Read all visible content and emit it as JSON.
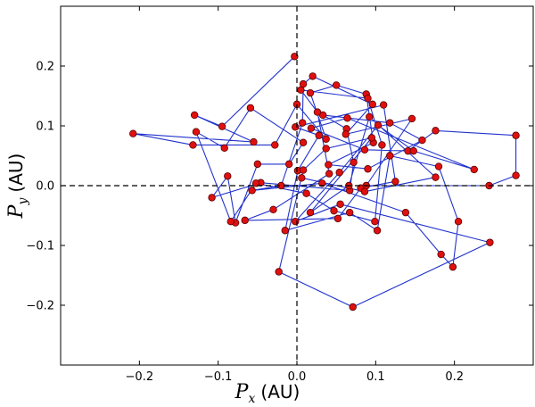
{
  "chart_data": {
    "type": "line",
    "title": "",
    "xlabel": {
      "symbol": "P",
      "subscript": "x",
      "unit": "(AU)"
    },
    "ylabel": {
      "symbol": "P",
      "subscript": "y",
      "unit": "(AU)"
    },
    "xlim": [
      -0.3,
      0.3
    ],
    "ylim": [
      -0.3,
      0.3
    ],
    "xticks": [
      -0.2,
      -0.1,
      0.0,
      0.1,
      0.2
    ],
    "yticks": [
      -0.2,
      -0.1,
      0.0,
      0.1,
      0.2
    ],
    "xtick_labels": [
      "−0.2",
      "−0.1",
      "0.0",
      "0.1",
      "0.2"
    ],
    "ytick_labels": [
      "−0.2",
      "−0.1",
      "0.0",
      "0.1",
      "0.2"
    ],
    "reference_lines": [
      {
        "orientation": "horizontal",
        "value": 0.0,
        "style": "dashed"
      },
      {
        "orientation": "vertical",
        "value": 0.0,
        "style": "dashed"
      }
    ],
    "grid": false,
    "line_color": "#2233cc",
    "marker_color": "#e01010",
    "marker_edge_color": "#550000",
    "points": [
      [
        -0.003,
        0.216
      ],
      [
        -0.095,
        0.099
      ],
      [
        -0.13,
        0.118
      ],
      [
        -0.055,
        0.073
      ],
      [
        -0.208,
        0.087
      ],
      [
        -0.132,
        0.068
      ],
      [
        -0.028,
        0.068
      ],
      [
        0.0,
        0.136
      ],
      [
        0.037,
        0.078
      ],
      [
        0.017,
        0.155
      ],
      [
        0.05,
        0.168
      ],
      [
        0.088,
        0.153
      ],
      [
        0.097,
        0.072
      ],
      [
        0.04,
        0.035
      ],
      [
        0.09,
        0.028
      ],
      [
        0.159,
        0.076
      ],
      [
        0.118,
        0.105
      ],
      [
        0.033,
        0.118
      ],
      [
        0.063,
        0.095
      ],
      [
        0.072,
        0.039
      ],
      [
        0.067,
        -0.008
      ],
      [
        -0.046,
        0.005
      ],
      [
        -0.108,
        -0.02
      ],
      [
        -0.088,
        0.016
      ],
      [
        -0.078,
        -0.062
      ],
      [
        -0.05,
        0.036
      ],
      [
        -0.01,
        0.036
      ],
      [
        0.008,
        0.072
      ],
      [
        -0.059,
        0.13
      ],
      [
        -0.092,
        0.063
      ],
      [
        -0.128,
        0.09
      ],
      [
        -0.084,
        -0.06
      ],
      [
        -0.052,
        0.004
      ],
      [
        0.012,
        -0.013
      ],
      [
        0.047,
        -0.042
      ],
      [
        0.099,
        -0.06
      ],
      [
        0.108,
        0.068
      ],
      [
        0.09,
        0.146
      ],
      [
        0.005,
        0.16
      ],
      [
        0.026,
        0.123
      ],
      [
        0.041,
        0.02
      ],
      [
        -0.03,
        -0.04
      ],
      [
        -0.066,
        -0.058
      ],
      [
        0.052,
        -0.055
      ],
      [
        0.081,
        -0.004
      ],
      [
        0.125,
        0.007
      ],
      [
        0.11,
        0.135
      ],
      [
        -0.002,
        0.098
      ],
      [
        0.028,
        0.084
      ],
      [
        0.001,
        0.025
      ],
      [
        -0.015,
        -0.075
      ],
      [
        0.067,
        -0.045
      ],
      [
        0.102,
        -0.075
      ],
      [
        0.118,
        0.05
      ],
      [
        0.18,
        0.032
      ],
      [
        0.205,
        -0.06
      ],
      [
        0.198,
        -0.136
      ],
      [
        0.183,
        -0.115
      ],
      [
        0.138,
        -0.045
      ],
      [
        0.032,
        0.004
      ],
      [
        -0.057,
        -0.008
      ],
      [
        -0.02,
        0.0
      ],
      [
        0.007,
        0.105
      ],
      [
        0.008,
        0.17
      ],
      [
        0.02,
        0.183
      ],
      [
        0.096,
        0.136
      ],
      [
        0.062,
        0.086
      ],
      [
        0.146,
        0.112
      ],
      [
        0.088,
        0.0
      ],
      [
        0.244,
        0.0
      ],
      [
        0.278,
        0.017
      ],
      [
        0.278,
        0.084
      ],
      [
        0.176,
        0.092
      ],
      [
        0.141,
        0.058
      ],
      [
        0.086,
        0.06
      ],
      [
        0.018,
        0.096
      ],
      [
        0.064,
        0.113
      ],
      [
        0.225,
        0.027
      ],
      [
        0.148,
        0.058
      ],
      [
        0.103,
        0.101
      ],
      [
        0.054,
        0.022
      ],
      [
        -0.002,
        -0.06
      ],
      [
        0.055,
        -0.031
      ],
      [
        0.245,
        -0.095
      ],
      [
        0.071,
        -0.203
      ],
      [
        -0.023,
        -0.144
      ],
      [
        0.008,
        0.026
      ],
      [
        0.037,
        0.062
      ],
      [
        0.095,
        0.08
      ],
      [
        0.017,
        -0.045
      ],
      [
        0.066,
        0.0
      ],
      [
        0.092,
        0.115
      ],
      [
        0.176,
        0.014
      ],
      [
        0.086,
        -0.01
      ],
      [
        0.006,
        0.013
      ]
    ]
  }
}
